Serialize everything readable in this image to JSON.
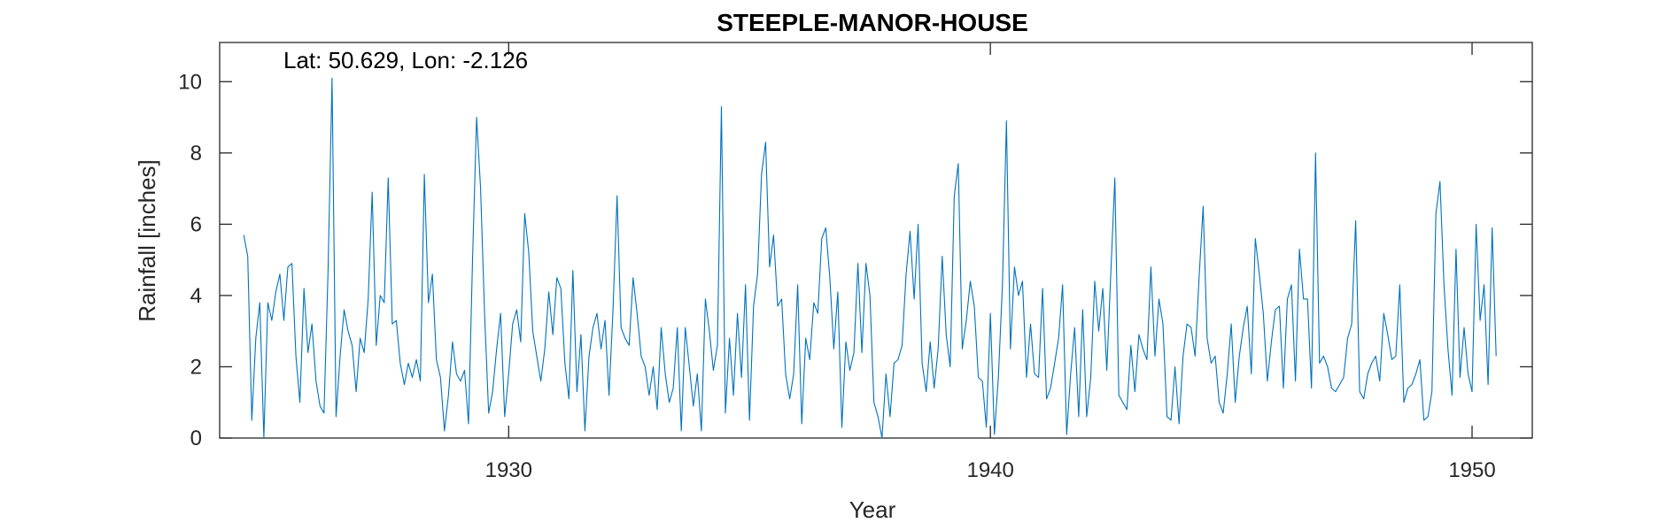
{
  "chart_data": {
    "type": "line",
    "title": "STEEPLE-MANOR-HOUSE",
    "xlabel": "Year",
    "ylabel": "Rainfall [inches]",
    "annotation": "Lat: 50.629, Lon: -2.126",
    "xlim": [
      1924,
      1951.25
    ],
    "ylim": [
      0,
      10
    ],
    "x_ticks": [
      1930,
      1940,
      1950
    ],
    "y_ticks": [
      0,
      2,
      4,
      6,
      8,
      10
    ],
    "grid": false,
    "colors": {
      "line": "#0072BD",
      "axes": "#262626"
    },
    "series": [
      {
        "x_start": 1924.5,
        "x_step_months": 1,
        "values": [
          5.7,
          5.1,
          0.5,
          2.8,
          3.8,
          0.0,
          3.8,
          3.3,
          4.1,
          4.6,
          3.3,
          4.8,
          4.9,
          2.3,
          1.0,
          4.2,
          2.4,
          3.2,
          1.6,
          0.9,
          0.7,
          4.7,
          10.1,
          0.6,
          2.3,
          3.6,
          3.0,
          2.6,
          1.3,
          2.8,
          2.4,
          3.9,
          6.9,
          2.6,
          4.0,
          3.8,
          7.3,
          3.2,
          3.3,
          2.1,
          1.5,
          2.1,
          1.7,
          2.2,
          1.6,
          7.4,
          3.8,
          4.6,
          2.2,
          1.7,
          0.2,
          1.2,
          2.7,
          1.8,
          1.6,
          1.9,
          0.4,
          5.0,
          9.0,
          7.0,
          3.5,
          0.7,
          1.3,
          2.5,
          3.5,
          0.6,
          1.8,
          3.2,
          3.6,
          2.7,
          6.3,
          5.2,
          3.0,
          2.3,
          1.6,
          2.5,
          4.1,
          2.9,
          4.5,
          4.2,
          2.1,
          1.1,
          4.7,
          1.3,
          2.9,
          0.2,
          2.3,
          3.1,
          3.5,
          2.5,
          3.3,
          1.2,
          3.6,
          6.8,
          3.1,
          2.8,
          2.6,
          4.5,
          3.5,
          2.3,
          2.0,
          1.2,
          2.0,
          0.8,
          3.1,
          1.8,
          1.0,
          1.4,
          3.1,
          0.2,
          3.1,
          2.0,
          0.9,
          1.8,
          0.2,
          3.9,
          3.0,
          1.9,
          2.6,
          9.3,
          0.7,
          2.8,
          1.2,
          3.5,
          1.7,
          4.3,
          0.5,
          3.7,
          4.6,
          7.4,
          8.3,
          4.8,
          5.7,
          3.7,
          3.9,
          1.8,
          1.1,
          1.8,
          4.3,
          0.4,
          2.8,
          2.2,
          3.8,
          3.5,
          5.6,
          5.9,
          4.5,
          2.5,
          4.1,
          0.3,
          2.7,
          1.9,
          2.4,
          4.9,
          2.4,
          4.9,
          4.0,
          1.0,
          0.6,
          0.0,
          1.8,
          0.6,
          2.1,
          2.2,
          2.6,
          4.6,
          5.8,
          3.9,
          6.0,
          2.1,
          1.3,
          2.7,
          1.4,
          2.5,
          5.1,
          2.9,
          2.0,
          6.8,
          7.7,
          2.5,
          3.3,
          4.4,
          3.7,
          1.7,
          1.6,
          0.3,
          3.5,
          0.1,
          1.7,
          4.3,
          8.9,
          2.5,
          4.8,
          4.0,
          4.4,
          1.7,
          3.2,
          1.8,
          1.7,
          4.2,
          1.1,
          1.4,
          2.1,
          2.8,
          4.3,
          0.1,
          1.8,
          3.1,
          0.6,
          3.6,
          0.6,
          1.7,
          4.4,
          3.0,
          4.2,
          1.9,
          4.6,
          7.3,
          1.2,
          1.0,
          0.8,
          2.6,
          1.3,
          2.9,
          2.5,
          2.2,
          4.8,
          2.3,
          3.9,
          3.2,
          0.6,
          0.5,
          2.0,
          0.4,
          2.3,
          3.2,
          3.1,
          2.3,
          4.5,
          6.5,
          2.8,
          2.1,
          2.3,
          1.0,
          0.7,
          1.8,
          3.2,
          1.0,
          2.3,
          3.1,
          3.7,
          1.8,
          5.6,
          4.6,
          3.5,
          1.6,
          2.7,
          3.6,
          3.7,
          1.4,
          3.9,
          4.3,
          1.6,
          5.3,
          3.9,
          3.9,
          1.4,
          8.0,
          2.1,
          2.3,
          2.0,
          1.4,
          1.3,
          1.5,
          1.7,
          2.8,
          3.2,
          6.1,
          1.3,
          1.1,
          1.8,
          2.1,
          2.3,
          1.6,
          3.5,
          2.9,
          2.2,
          2.3,
          4.3,
          1.0,
          1.4,
          1.5,
          1.8,
          2.2,
          0.5,
          0.6,
          1.3,
          6.3,
          7.2,
          4.3,
          2.5,
          1.2,
          5.3,
          1.7,
          3.1,
          1.8,
          1.3,
          6.0,
          3.3,
          4.3,
          1.5,
          5.9,
          2.3
        ]
      }
    ]
  }
}
